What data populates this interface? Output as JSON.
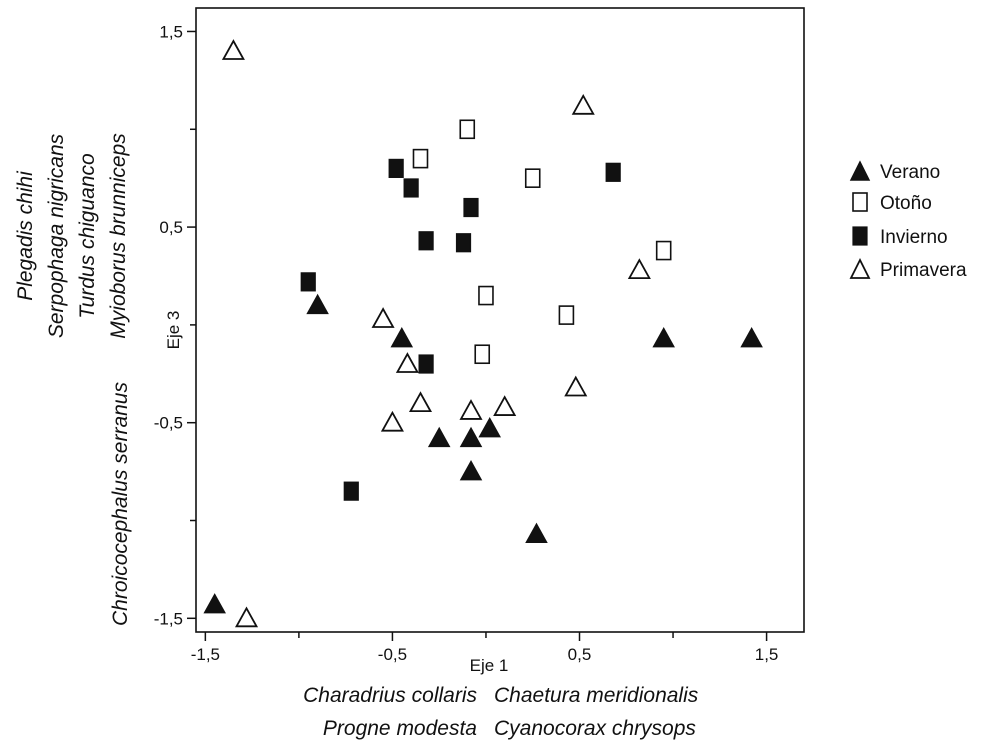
{
  "chart_data": {
    "type": "scatter",
    "xlabel": "Eje 1",
    "ylabel": "Eje 3",
    "xlim": [
      -1.55,
      1.7
    ],
    "ylim": [
      -1.57,
      1.62
    ],
    "x_ticks": [
      -1.5,
      -0.5,
      0.5,
      1.5
    ],
    "x_tick_labels": [
      "-1,5",
      "-0,5",
      "0,5",
      "1,5"
    ],
    "y_ticks": [
      -1.5,
      -0.5,
      0.5,
      1.5
    ],
    "y_tick_labels": [
      "-1,5",
      "-0,5",
      "0,5",
      "1,5"
    ],
    "x_minor_ticks": [
      -1.0,
      0.0,
      1.0
    ],
    "y_minor_ticks": [
      -1.0,
      0.0,
      1.0
    ],
    "grid": false,
    "legend_position": "right",
    "series": [
      {
        "name": "Verano",
        "marker": "triangle-filled",
        "points": [
          [
            -1.45,
            -1.43
          ],
          [
            -0.9,
            0.1
          ],
          [
            -0.45,
            -0.07
          ],
          [
            -0.25,
            -0.58
          ],
          [
            -0.08,
            -0.58
          ],
          [
            -0.08,
            -0.75
          ],
          [
            0.02,
            -0.53
          ],
          [
            0.27,
            -1.07
          ],
          [
            0.95,
            -0.07
          ],
          [
            1.42,
            -0.07
          ]
        ]
      },
      {
        "name": "Otoño",
        "marker": "square-open",
        "points": [
          [
            -0.35,
            0.85
          ],
          [
            -0.1,
            1.0
          ],
          [
            0.25,
            0.75
          ],
          [
            0.0,
            0.15
          ],
          [
            -0.02,
            -0.15
          ],
          [
            0.43,
            0.05
          ],
          [
            0.95,
            0.38
          ]
        ]
      },
      {
        "name": "Invierno",
        "marker": "square-filled",
        "points": [
          [
            -0.48,
            0.8
          ],
          [
            -0.4,
            0.7
          ],
          [
            -0.32,
            0.43
          ],
          [
            -0.08,
            0.6
          ],
          [
            -0.12,
            0.42
          ],
          [
            -0.95,
            0.22
          ],
          [
            -0.32,
            -0.2
          ],
          [
            -0.72,
            -0.85
          ],
          [
            0.68,
            0.78
          ]
        ]
      },
      {
        "name": "Primavera",
        "marker": "triangle-open",
        "points": [
          [
            -1.35,
            1.4
          ],
          [
            0.52,
            1.12
          ],
          [
            -0.55,
            0.03
          ],
          [
            -0.42,
            -0.2
          ],
          [
            -0.35,
            -0.4
          ],
          [
            -0.5,
            -0.5
          ],
          [
            -0.08,
            -0.44
          ],
          [
            0.1,
            -0.42
          ],
          [
            0.48,
            -0.32
          ],
          [
            0.82,
            0.28
          ],
          [
            -1.28,
            -1.5
          ]
        ]
      }
    ],
    "annotations": {
      "left": {
        "upper": [
          "Plegadis chihi",
          "Serpophaga nigricans",
          "Turdus chiguanco",
          "Myioborus brunniceps"
        ],
        "lower": [
          "Chroicocephalus serranus"
        ]
      },
      "bottom": {
        "left": [
          "Charadrius collaris",
          "Progne modesta"
        ],
        "right": [
          "Chaetura meridionalis",
          "Cyanocorax chrysops"
        ]
      }
    }
  }
}
